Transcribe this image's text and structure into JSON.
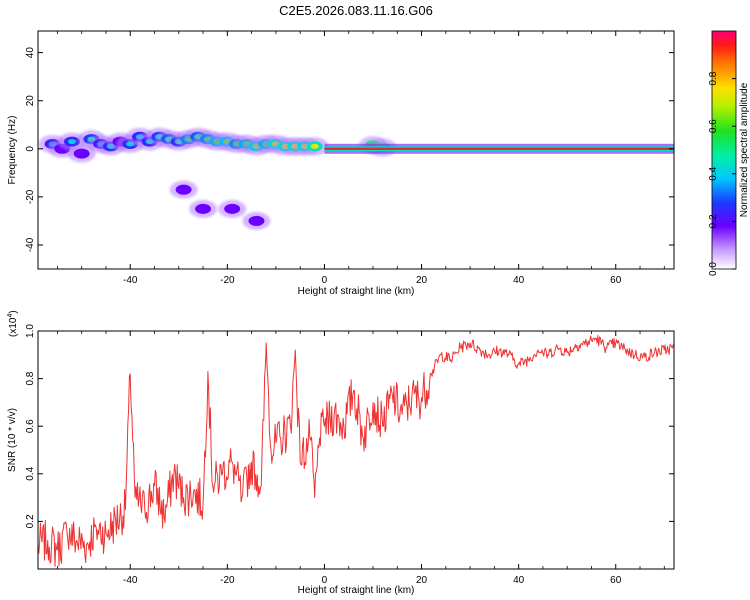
{
  "title": "C2E5.2026.083.11.16.G06",
  "colors": {
    "snr_line": "#ee3333",
    "axis": "#000000",
    "ridge": "#e8262e"
  },
  "chart_data": [
    {
      "type": "heatmap",
      "title": "C2E5.2026.083.11.16.G06",
      "xlabel": "Height of straight line (km)",
      "ylabel": "Frequency (Hz)",
      "xlim": [
        -59,
        72
      ],
      "ylim": [
        -50,
        49
      ],
      "xticks": [
        {
          "value": -40,
          "label": "-40"
        },
        {
          "value": -20,
          "label": "-20"
        },
        {
          "value": 0,
          "label": "0"
        },
        {
          "value": 20,
          "label": "20"
        },
        {
          "value": 40,
          "label": "40"
        },
        {
          "value": 60,
          "label": "60"
        }
      ],
      "yticks": [
        {
          "value": 40,
          "label": "40"
        },
        {
          "value": 20,
          "label": "20"
        },
        {
          "value": 0,
          "label": "0"
        },
        {
          "value": -20,
          "label": "-20"
        },
        {
          "value": -40,
          "label": "-40"
        }
      ],
      "colorbar": {
        "label": "Normalized spectral amplitude",
        "range": [
          0,
          1
        ],
        "ticks": [
          {
            "value": 0.0,
            "label": "0.0"
          },
          {
            "value": 0.2,
            "label": "0.2"
          },
          {
            "value": 0.4,
            "label": "0.4"
          },
          {
            "value": 0.6,
            "label": "0.6"
          },
          {
            "value": 0.8,
            "label": "0.8"
          }
        ]
      },
      "ridge": {
        "x_start": 0,
        "x_end": 72,
        "freq": 0
      },
      "blobs": [
        {
          "x": -56,
          "y": 2,
          "a": 0.35
        },
        {
          "x": -54,
          "y": 0,
          "a": 0.3
        },
        {
          "x": -52,
          "y": 3,
          "a": 0.4
        },
        {
          "x": -50,
          "y": -2,
          "a": 0.3
        },
        {
          "x": -48,
          "y": 4,
          "a": 0.45
        },
        {
          "x": -46,
          "y": 2,
          "a": 0.35
        },
        {
          "x": -44,
          "y": 1,
          "a": 0.4
        },
        {
          "x": -42,
          "y": 3,
          "a": 0.3
        },
        {
          "x": -40,
          "y": 2,
          "a": 0.42
        },
        {
          "x": -38,
          "y": 5,
          "a": 0.38
        },
        {
          "x": -36,
          "y": 3,
          "a": 0.4
        },
        {
          "x": -34,
          "y": 5,
          "a": 0.45
        },
        {
          "x": -32,
          "y": 4,
          "a": 0.5
        },
        {
          "x": -30,
          "y": 3,
          "a": 0.45
        },
        {
          "x": -28,
          "y": 4,
          "a": 0.55
        },
        {
          "x": -26,
          "y": 5,
          "a": 0.5
        },
        {
          "x": -24,
          "y": 4,
          "a": 0.55
        },
        {
          "x": -22,
          "y": 3,
          "a": 0.6
        },
        {
          "x": -20,
          "y": 3,
          "a": 0.62
        },
        {
          "x": -18,
          "y": 2,
          "a": 0.55
        },
        {
          "x": -16,
          "y": 2,
          "a": 0.6
        },
        {
          "x": -14,
          "y": 1,
          "a": 0.65
        },
        {
          "x": -12,
          "y": 2,
          "a": 0.6
        },
        {
          "x": -10,
          "y": 2,
          "a": 0.68
        },
        {
          "x": -8,
          "y": 1,
          "a": 0.7
        },
        {
          "x": -6,
          "y": 1,
          "a": 0.72
        },
        {
          "x": -4,
          "y": 1,
          "a": 0.7
        },
        {
          "x": -2,
          "y": 1,
          "a": 0.75
        },
        {
          "x": 10,
          "y": 1.5,
          "a": 0.85
        },
        {
          "x": 12,
          "y": 0.5,
          "a": 0.8
        },
        {
          "x": -29,
          "y": -17,
          "a": 0.28
        },
        {
          "x": -25,
          "y": -25,
          "a": 0.12
        },
        {
          "x": -19,
          "y": -25,
          "a": 0.1
        },
        {
          "x": -14,
          "y": -30,
          "a": 0.2
        }
      ]
    },
    {
      "type": "line",
      "xlabel": "Height of straight line (km)",
      "ylabel": "SNR (10 * v/v)",
      "scale_label": "(x10",
      "scale_exponent": "4",
      "scale_close": ")",
      "xlim": [
        -59,
        72
      ],
      "ylim": [
        0,
        1.0
      ],
      "xticks": [
        {
          "value": -40,
          "label": "-40"
        },
        {
          "value": -20,
          "label": "-20"
        },
        {
          "value": 0,
          "label": "0"
        },
        {
          "value": 20,
          "label": "20"
        },
        {
          "value": 40,
          "label": "40"
        },
        {
          "value": 60,
          "label": "60"
        }
      ],
      "yticks": [
        {
          "value": 1.0,
          "label": "1.0"
        },
        {
          "value": 0.8,
          "label": "0.8"
        },
        {
          "value": 0.6,
          "label": "0.6"
        },
        {
          "value": 0.4,
          "label": "0.4"
        },
        {
          "value": 0.2,
          "label": "0.2"
        }
      ],
      "series": [
        {
          "name": "SNR",
          "x": [
            -59,
            -57,
            -55,
            -53,
            -51,
            -49,
            -47,
            -45,
            -43,
            -41,
            -40,
            -39,
            -37,
            -35,
            -33,
            -31,
            -29,
            -27,
            -25,
            -24,
            -23,
            -21,
            -19,
            -17,
            -15,
            -13,
            -12,
            -11,
            -9,
            -7,
            -6,
            -5,
            -3,
            -2,
            -1,
            0,
            2,
            4,
            6,
            8,
            10,
            12,
            14,
            16,
            18,
            20,
            22,
            24,
            26,
            28,
            30,
            32,
            34,
            36,
            38,
            40,
            42,
            44,
            46,
            48,
            50,
            52,
            54,
            56,
            58,
            60,
            62,
            64,
            66,
            68,
            70,
            72
          ],
          "values": [
            0.1,
            0.12,
            0.08,
            0.15,
            0.12,
            0.1,
            0.17,
            0.15,
            0.2,
            0.25,
            0.82,
            0.3,
            0.25,
            0.35,
            0.22,
            0.4,
            0.3,
            0.32,
            0.28,
            0.83,
            0.35,
            0.4,
            0.45,
            0.3,
            0.45,
            0.35,
            0.95,
            0.5,
            0.55,
            0.6,
            0.92,
            0.45,
            0.55,
            0.3,
            0.55,
            0.6,
            0.65,
            0.6,
            0.75,
            0.55,
            0.7,
            0.6,
            0.73,
            0.65,
            0.72,
            0.72,
            0.82,
            0.9,
            0.88,
            0.93,
            0.95,
            0.92,
            0.9,
            0.92,
            0.9,
            0.86,
            0.88,
            0.92,
            0.9,
            0.93,
            0.91,
            0.94,
            0.95,
            0.97,
            0.93,
            0.95,
            0.92,
            0.9,
            0.89,
            0.91,
            0.92,
            0.93
          ]
        }
      ]
    }
  ]
}
